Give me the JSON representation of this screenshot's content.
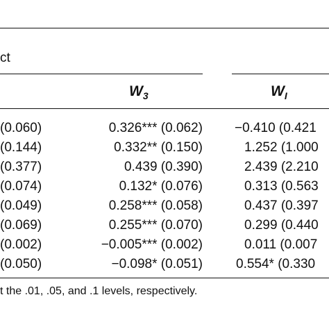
{
  "header": {
    "group_label": "ct",
    "col_w3_base": "W",
    "col_w3_sub": "3",
    "col_w1_base": "W",
    "col_w1_sub": "I"
  },
  "rows": [
    {
      "left": "(0.060)",
      "w3": "0.326*** (0.062)",
      "w1": "−0.410 (0.421"
    },
    {
      "left": "(0.144)",
      "w3": "0.332** (0.150)",
      "w1": "1.252 (1.000"
    },
    {
      "left": "(0.377)",
      "w3": "0.439 (0.390)",
      "w1": "2.439 (2.210"
    },
    {
      "left": "(0.074)",
      "w3": "0.132* (0.076)",
      "w1": "0.313 (0.563"
    },
    {
      "left": "(0.049)",
      "w3": "0.258*** (0.058)",
      "w1": "0.437 (0.397"
    },
    {
      "left": "(0.069)",
      "w3": "0.255*** (0.070)",
      "w1": "0.299 (0.440"
    },
    {
      "left": "(0.002)",
      "w3": "−0.005*** (0.002)",
      "w1": "0.011 (0.007"
    },
    {
      "left": "(0.050)",
      "w3": "−0.098* (0.051)",
      "w1": "0.554* (0.330"
    }
  ],
  "footnote": "t the .01, .05, and .1 levels, respectively."
}
